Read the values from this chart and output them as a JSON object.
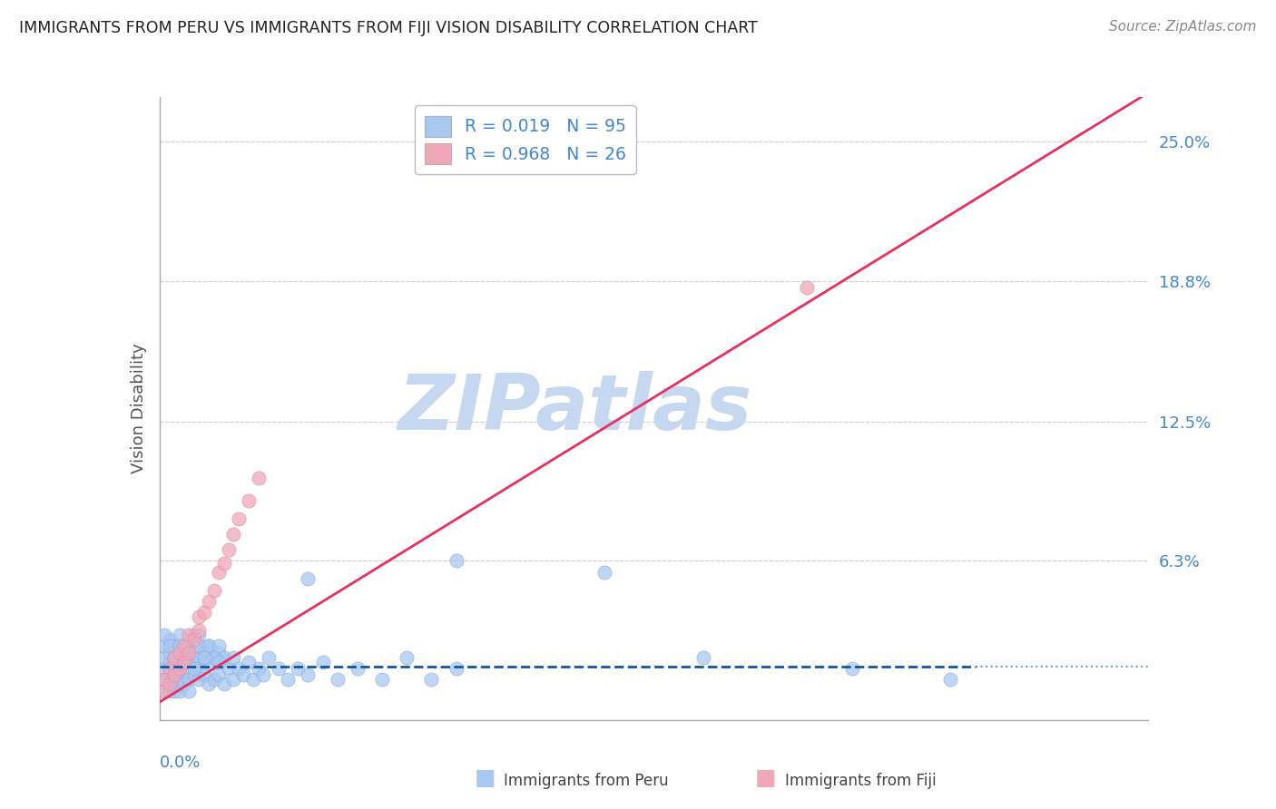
{
  "title": "IMMIGRANTS FROM PERU VS IMMIGRANTS FROM FIJI VISION DISABILITY CORRELATION CHART",
  "source": "Source: ZipAtlas.com",
  "ylabel": "Vision Disability",
  "ytick_vals": [
    0.0,
    0.063,
    0.125,
    0.188,
    0.25
  ],
  "ytick_labels": [
    "",
    "6.3%",
    "12.5%",
    "18.8%",
    "25.0%"
  ],
  "xlim": [
    0.0,
    0.2
  ],
  "ylim": [
    -0.008,
    0.27
  ],
  "legend_r1": "R = 0.019",
  "legend_n1": "N = 95",
  "legend_r2": "R = 0.968",
  "legend_n2": "N = 26",
  "peru_color": "#a8c8f0",
  "fiji_color": "#f0a8b8",
  "peru_line_color": "#1055aa",
  "fiji_line_color": "#e83060",
  "watermark": "ZIPatlas",
  "watermark_color_zip": "#b0c8e8",
  "watermark_color_atlas": "#90b8d8",
  "background": "#ffffff",
  "grid_color": "#cccccc",
  "title_color": "#222222",
  "source_color": "#888888",
  "label_color": "#4488cc",
  "axis_color": "#aaaaaa",
  "peru_scatter_x": [
    0.001,
    0.001,
    0.001,
    0.001,
    0.001,
    0.002,
    0.002,
    0.002,
    0.002,
    0.002,
    0.002,
    0.002,
    0.003,
    0.003,
    0.003,
    0.003,
    0.003,
    0.004,
    0.004,
    0.004,
    0.004,
    0.004,
    0.004,
    0.005,
    0.005,
    0.005,
    0.005,
    0.005,
    0.006,
    0.006,
    0.006,
    0.006,
    0.007,
    0.007,
    0.007,
    0.008,
    0.008,
    0.008,
    0.009,
    0.009,
    0.01,
    0.01,
    0.01,
    0.011,
    0.011,
    0.012,
    0.012,
    0.013,
    0.013,
    0.014,
    0.015,
    0.015,
    0.016,
    0.017,
    0.018,
    0.019,
    0.02,
    0.021,
    0.022,
    0.024,
    0.026,
    0.028,
    0.03,
    0.033,
    0.036,
    0.04,
    0.045,
    0.05,
    0.055,
    0.06,
    0.001,
    0.002,
    0.003,
    0.004,
    0.004,
    0.005,
    0.006,
    0.007,
    0.008,
    0.008,
    0.009,
    0.01,
    0.011,
    0.012,
    0.03,
    0.06,
    0.09,
    0.11,
    0.14,
    0.16,
    0.003,
    0.005,
    0.007,
    0.009,
    0.012
  ],
  "peru_scatter_y": [
    0.01,
    0.015,
    0.02,
    0.025,
    0.005,
    0.008,
    0.012,
    0.018,
    0.022,
    0.028,
    0.015,
    0.005,
    0.01,
    0.02,
    0.025,
    0.005,
    0.015,
    0.008,
    0.015,
    0.02,
    0.025,
    0.01,
    0.005,
    0.012,
    0.018,
    0.022,
    0.008,
    0.025,
    0.01,
    0.02,
    0.025,
    0.005,
    0.012,
    0.018,
    0.025,
    0.01,
    0.02,
    0.015,
    0.012,
    0.022,
    0.008,
    0.018,
    0.025,
    0.01,
    0.02,
    0.012,
    0.022,
    0.008,
    0.02,
    0.015,
    0.01,
    0.02,
    0.015,
    0.012,
    0.018,
    0.01,
    0.015,
    0.012,
    0.02,
    0.015,
    0.01,
    0.015,
    0.012,
    0.018,
    0.01,
    0.015,
    0.01,
    0.02,
    0.01,
    0.015,
    0.03,
    0.025,
    0.02,
    0.03,
    0.025,
    0.02,
    0.025,
    0.03,
    0.03,
    0.025,
    0.02,
    0.025,
    0.02,
    0.025,
    0.055,
    0.063,
    0.058,
    0.02,
    0.015,
    0.01,
    0.012,
    0.018,
    0.015,
    0.02,
    0.018
  ],
  "fiji_scatter_x": [
    0.001,
    0.001,
    0.002,
    0.002,
    0.003,
    0.003,
    0.004,
    0.004,
    0.005,
    0.005,
    0.006,
    0.006,
    0.007,
    0.008,
    0.008,
    0.009,
    0.01,
    0.011,
    0.012,
    0.013,
    0.014,
    0.015,
    0.016,
    0.018,
    0.02,
    0.131
  ],
  "fiji_scatter_y": [
    0.005,
    0.01,
    0.008,
    0.015,
    0.012,
    0.02,
    0.015,
    0.022,
    0.018,
    0.025,
    0.022,
    0.03,
    0.028,
    0.032,
    0.038,
    0.04,
    0.045,
    0.05,
    0.058,
    0.062,
    0.068,
    0.075,
    0.082,
    0.09,
    0.1,
    0.185
  ],
  "peru_line_x": [
    0.0,
    0.165
  ],
  "peru_line_y": [
    0.016,
    0.016
  ],
  "fiji_line_x": [
    0.0,
    0.2
  ],
  "fiji_line_y": [
    0.0,
    0.272
  ]
}
